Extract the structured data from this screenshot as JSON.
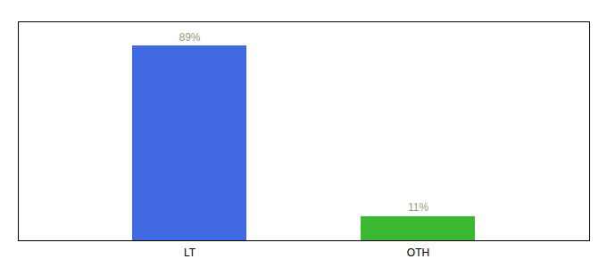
{
  "chart_data": {
    "type": "bar",
    "categories": [
      "LT",
      "OTH"
    ],
    "values": [
      89,
      11
    ],
    "value_labels": [
      "89%",
      "11%"
    ],
    "colors": [
      "#4169e1",
      "#3cb832"
    ],
    "ylim": [
      0,
      100
    ],
    "data_labels": true,
    "grid": false,
    "tick_labels": "x"
  }
}
